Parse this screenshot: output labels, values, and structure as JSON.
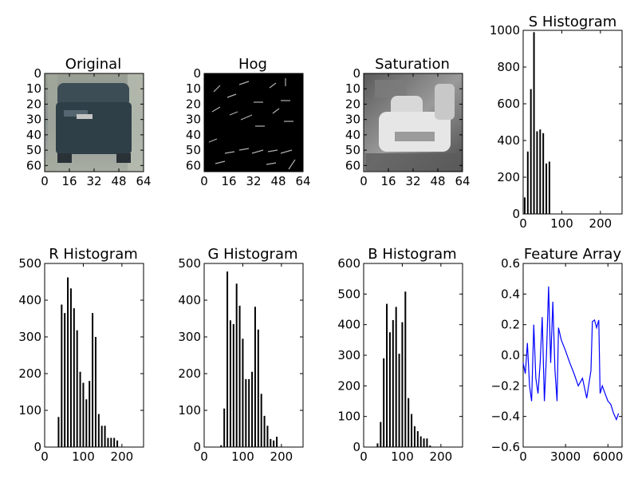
{
  "chart_data": [
    {
      "type": "image",
      "title": "Original",
      "xticks": [
        "0",
        "16",
        "32",
        "48",
        "64"
      ],
      "yticks": [
        "0",
        "10",
        "20",
        "30",
        "40",
        "50",
        "60"
      ],
      "xlim": [
        0,
        64
      ],
      "ylim": [
        0,
        64
      ],
      "image_description": "car rear view"
    },
    {
      "type": "image",
      "title": "Hog",
      "xticks": [
        "0",
        "16",
        "32",
        "48",
        "64"
      ],
      "yticks": [
        "0",
        "10",
        "20",
        "30",
        "40",
        "50",
        "60"
      ],
      "xlim": [
        0,
        64
      ],
      "ylim": [
        0,
        64
      ],
      "image_description": "HOG visualization"
    },
    {
      "type": "image",
      "title": "Saturation",
      "xticks": [
        "0",
        "16",
        "32",
        "48",
        "64"
      ],
      "yticks": [
        "0",
        "10",
        "20",
        "30",
        "40",
        "50",
        "60"
      ],
      "xlim": [
        0,
        64
      ],
      "ylim": [
        0,
        64
      ],
      "image_description": "saturation channel grayscale"
    },
    {
      "type": "bar",
      "title": "S Histogram",
      "xticks": [
        "0",
        "100",
        "200"
      ],
      "yticks": [
        "0",
        "200",
        "400",
        "600",
        "800",
        "1000"
      ],
      "xlim": [
        0,
        256
      ],
      "ylim": [
        0,
        1000
      ],
      "x": [
        4,
        12,
        20,
        28,
        36,
        44,
        52,
        60,
        68
      ],
      "values": [
        90,
        340,
        680,
        990,
        450,
        460,
        440,
        275,
        285
      ]
    },
    {
      "type": "bar",
      "title": "R Histogram",
      "xticks": [
        "0",
        "100",
        "200"
      ],
      "yticks": [
        "0",
        "100",
        "200",
        "300",
        "400",
        "500"
      ],
      "xlim": [
        0,
        256
      ],
      "ylim": [
        0,
        500
      ],
      "x": [
        36,
        44,
        52,
        60,
        68,
        76,
        84,
        92,
        100,
        108,
        116,
        124,
        132,
        140,
        148,
        156,
        164,
        172,
        180,
        188
      ],
      "values": [
        82,
        388,
        365,
        462,
        432,
        378,
        318,
        205,
        175,
        130,
        180,
        365,
        300,
        90,
        58,
        58,
        25,
        25,
        25,
        18
      ]
    },
    {
      "type": "bar",
      "title": "G Histogram",
      "xticks": [
        "0",
        "100",
        "200"
      ],
      "yticks": [
        "0",
        "100",
        "200",
        "300",
        "400",
        "500"
      ],
      "xlim": [
        0,
        256
      ],
      "ylim": [
        0,
        500
      ],
      "x": [
        44,
        52,
        60,
        68,
        76,
        84,
        92,
        100,
        108,
        116,
        124,
        132,
        140,
        148,
        156,
        164,
        172,
        180,
        188
      ],
      "values": [
        5,
        105,
        478,
        345,
        335,
        445,
        385,
        295,
        185,
        185,
        205,
        382,
        320,
        145,
        85,
        58,
        22,
        18,
        28
      ]
    },
    {
      "type": "bar",
      "title": "B Histogram",
      "xticks": [
        "0",
        "100",
        "200"
      ],
      "yticks": [
        "0",
        "100",
        "200",
        "300",
        "400",
        "500",
        "600"
      ],
      "xlim": [
        0,
        256
      ],
      "ylim": [
        0,
        600
      ],
      "x": [
        36,
        44,
        52,
        60,
        68,
        76,
        84,
        92,
        100,
        108,
        116,
        124,
        132,
        140,
        148,
        156,
        164,
        172
      ],
      "values": [
        12,
        82,
        290,
        468,
        375,
        415,
        458,
        305,
        408,
        508,
        160,
        108,
        68,
        52,
        35,
        28,
        28,
        5
      ]
    },
    {
      "type": "line",
      "title": "Feature Array",
      "xticks": [
        "0",
        "3000",
        "6000"
      ],
      "yticks": [
        "−0.6",
        "−0.4",
        "−0.2",
        "0.0",
        "0.2",
        "0.4",
        "0.6"
      ],
      "xlim": [
        0,
        7000
      ],
      "ylim": [
        -0.6,
        0.6
      ],
      "color": "#0000ff",
      "series": [
        {
          "x": [
            0,
            150,
            300,
            450,
            600,
            750,
            900,
            1050,
            1200,
            1350,
            1500,
            1650,
            1800,
            1950,
            2100,
            2250,
            2400,
            2500,
            2700,
            3000,
            3300,
            3600,
            3900,
            4200,
            4500,
            4800,
            4900,
            5050,
            5200,
            5350,
            5450,
            5600,
            5800,
            6000,
            6200,
            6400,
            6600,
            6750
          ],
          "y": [
            -0.05,
            -0.12,
            0.08,
            -0.2,
            -0.3,
            0.2,
            -0.15,
            -0.25,
            -0.05,
            0.25,
            -0.3,
            0.0,
            0.45,
            -0.05,
            0.35,
            -0.1,
            -0.3,
            0.18,
            0.1,
            0.03,
            -0.05,
            -0.12,
            -0.2,
            -0.15,
            -0.28,
            -0.1,
            0.22,
            0.23,
            0.18,
            0.23,
            -0.25,
            -0.2,
            -0.25,
            -0.3,
            -0.32,
            -0.38,
            -0.42,
            -0.38
          ]
        }
      ]
    }
  ]
}
